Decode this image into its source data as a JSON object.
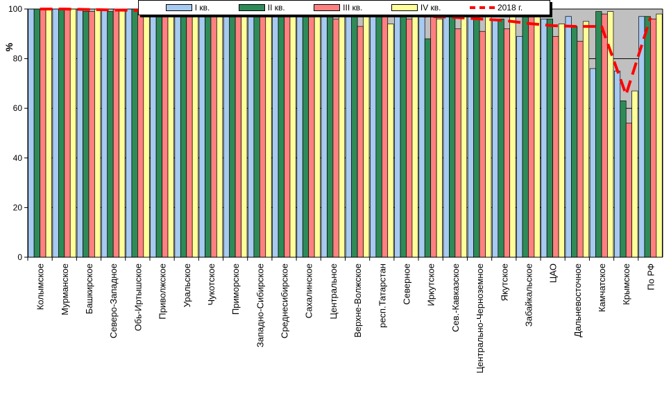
{
  "chart_data": {
    "type": "bar",
    "ylabel": "%",
    "ylim": [
      0,
      100
    ],
    "yticks": [
      0,
      20,
      40,
      60,
      80,
      100
    ],
    "grid": "horizontal",
    "legend_position": "top",
    "categories": [
      "Колымское",
      "Мурманское",
      "Башкирское",
      "Северо-Западное",
      "Обь-Иртышское",
      "Приволжское",
      "Уральское",
      "Чукотское",
      "Приморское",
      "Западно-Сибирское",
      "Среднесибирское",
      "Сахалинское",
      "Центральное",
      "Верхне-Волжское",
      "респ.Татарстан",
      "Северное",
      "Иркутское",
      "Сев.-Кавказское",
      "Центрально-Черноземное",
      "Якутское",
      "Забайкальское",
      "ЦАО",
      "Дальневосточное",
      "Камчатское",
      "Крымское",
      "По РФ"
    ],
    "series": [
      {
        "name": "I кв.",
        "color": "#a6caf0",
        "values": [
          100,
          100,
          100,
          100,
          100,
          100,
          100,
          98,
          100,
          100,
          98,
          100,
          100,
          100,
          99,
          98,
          100,
          98,
          98,
          96,
          89,
          96,
          97,
          76,
          75,
          97
        ]
      },
      {
        "name": "II кв.",
        "color": "#2e8b57",
        "values": [
          100,
          100,
          99,
          99,
          100,
          99,
          100,
          99,
          98,
          99,
          99,
          99,
          99,
          99,
          99,
          98,
          88,
          97,
          99,
          96,
          97,
          96,
          93,
          99,
          63,
          97
        ]
      },
      {
        "name": "III кв.",
        "color": "#ff8080",
        "values": [
          100,
          100,
          99,
          100,
          98,
          100,
          100,
          100,
          99,
          99,
          99,
          99,
          96,
          93,
          99,
          96,
          100,
          92,
          91,
          92,
          97,
          89,
          87,
          98,
          54,
          96
        ]
      },
      {
        "name": "IV кв.",
        "color": "#ffff99",
        "values": [
          100,
          100,
          100,
          100,
          99,
          100,
          99,
          100,
          100,
          99,
          99,
          98,
          98,
          99,
          94,
          98,
          96,
          99,
          98,
          98,
          97,
          94,
          95,
          99,
          67,
          98
        ]
      },
      {
        "name": "2018 г.",
        "type": "line",
        "color": "#ff0000",
        "values": [
          100,
          100,
          99.8,
          99.6,
          99.4,
          99.2,
          99.2,
          99,
          98.8,
          98.7,
          98.6,
          98.5,
          98.3,
          98,
          97.7,
          97.5,
          97,
          96.6,
          96,
          95.4,
          94.2,
          93.3,
          93,
          93,
          65.5,
          96.5
        ]
      }
    ]
  },
  "legend": {
    "q1": "I кв.",
    "q2": "II кв.",
    "q3": "III кв.",
    "q4": "IV кв.",
    "line": "2018 г."
  }
}
